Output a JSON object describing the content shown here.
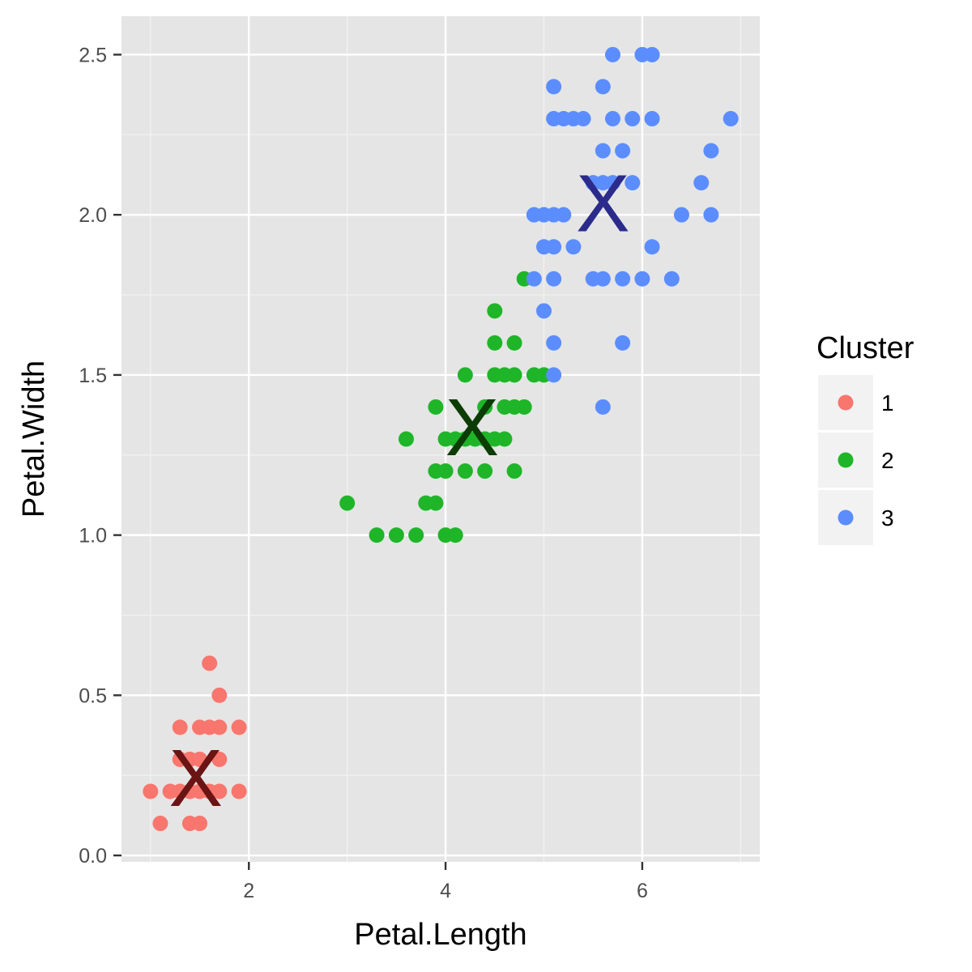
{
  "chart_data": {
    "type": "scatter",
    "xlabel": "Petal.Length",
    "ylabel": "Petal.Width",
    "xlim": [
      0.705,
      7.195
    ],
    "ylim": [
      -0.02,
      2.62
    ],
    "x_ticks": [
      2,
      4,
      6
    ],
    "x_tick_labels": [
      "2",
      "4",
      "6"
    ],
    "y_ticks": [
      0.0,
      0.5,
      1.0,
      1.5,
      2.0,
      2.5
    ],
    "y_tick_labels": [
      "0.0",
      "0.5",
      "1.0",
      "1.5",
      "2.0",
      "2.5"
    ],
    "grid": true,
    "panel_background": "#e5e5e5",
    "legend": {
      "title": "Cluster",
      "placement": "right",
      "entries": [
        {
          "label": "1",
          "color": "#f8766d"
        },
        {
          "label": "2",
          "color": "#1fb529"
        },
        {
          "label": "3",
          "color": "#5c8dff"
        }
      ]
    },
    "centroids": [
      {
        "cluster": "1",
        "label": "X",
        "x": 1.46,
        "y": 0.246,
        "color": "#6b1414"
      },
      {
        "cluster": "2",
        "label": "X",
        "x": 4.27,
        "y": 1.34,
        "color": "#0b3d05"
      },
      {
        "cluster": "3",
        "label": "X",
        "x": 5.6,
        "y": 2.04,
        "color": "#2b2b8c"
      }
    ],
    "series": [
      {
        "name": "1",
        "color": "#f8766d",
        "points": [
          [
            1.0,
            0.2
          ],
          [
            1.2,
            0.2
          ],
          [
            1.3,
            0.2
          ],
          [
            1.4,
            0.2
          ],
          [
            1.5,
            0.2
          ],
          [
            1.6,
            0.2
          ],
          [
            1.7,
            0.2
          ],
          [
            1.9,
            0.2
          ],
          [
            1.1,
            0.1
          ],
          [
            1.4,
            0.1
          ],
          [
            1.5,
            0.1
          ],
          [
            1.3,
            0.3
          ],
          [
            1.4,
            0.3
          ],
          [
            1.5,
            0.3
          ],
          [
            1.7,
            0.3
          ],
          [
            1.3,
            0.4
          ],
          [
            1.5,
            0.4
          ],
          [
            1.6,
            0.4
          ],
          [
            1.7,
            0.4
          ],
          [
            1.9,
            0.4
          ],
          [
            1.7,
            0.5
          ],
          [
            1.6,
            0.6
          ]
        ]
      },
      {
        "name": "2",
        "color": "#1fb529",
        "points": [
          [
            3.3,
            1.0
          ],
          [
            3.5,
            1.0
          ],
          [
            3.7,
            1.0
          ],
          [
            4.0,
            1.0
          ],
          [
            4.1,
            1.0
          ],
          [
            3.0,
            1.1
          ],
          [
            3.8,
            1.1
          ],
          [
            3.9,
            1.1
          ],
          [
            3.9,
            1.2
          ],
          [
            4.0,
            1.2
          ],
          [
            4.2,
            1.2
          ],
          [
            4.4,
            1.2
          ],
          [
            4.7,
            1.2
          ],
          [
            3.6,
            1.3
          ],
          [
            4.0,
            1.3
          ],
          [
            4.1,
            1.3
          ],
          [
            4.2,
            1.3
          ],
          [
            4.3,
            1.3
          ],
          [
            4.4,
            1.3
          ],
          [
            4.5,
            1.3
          ],
          [
            4.6,
            1.3
          ],
          [
            3.9,
            1.4
          ],
          [
            4.4,
            1.4
          ],
          [
            4.6,
            1.4
          ],
          [
            4.7,
            1.4
          ],
          [
            4.8,
            1.4
          ],
          [
            4.2,
            1.5
          ],
          [
            4.5,
            1.5
          ],
          [
            4.6,
            1.5
          ],
          [
            4.7,
            1.5
          ],
          [
            4.9,
            1.5
          ],
          [
            5.0,
            1.5
          ],
          [
            4.5,
            1.6
          ],
          [
            4.7,
            1.6
          ],
          [
            4.5,
            1.7
          ],
          [
            4.8,
            1.8
          ]
        ]
      },
      {
        "name": "3",
        "color": "#5c8dff",
        "points": [
          [
            5.1,
            1.5
          ],
          [
            5.6,
            1.4
          ],
          [
            5.8,
            1.6
          ],
          [
            5.1,
            1.6
          ],
          [
            5.0,
            1.7
          ],
          [
            4.9,
            1.8
          ],
          [
            5.1,
            1.8
          ],
          [
            5.5,
            1.8
          ],
          [
            5.6,
            1.8
          ],
          [
            5.8,
            1.8
          ],
          [
            6.0,
            1.8
          ],
          [
            6.3,
            1.8
          ],
          [
            5.0,
            1.9
          ],
          [
            5.1,
            1.9
          ],
          [
            5.3,
            1.9
          ],
          [
            6.1,
            1.9
          ],
          [
            4.9,
            2.0
          ],
          [
            5.0,
            2.0
          ],
          [
            5.1,
            2.0
          ],
          [
            5.2,
            2.0
          ],
          [
            6.4,
            2.0
          ],
          [
            6.7,
            2.0
          ],
          [
            5.5,
            2.1
          ],
          [
            5.6,
            2.1
          ],
          [
            5.7,
            2.1
          ],
          [
            5.9,
            2.1
          ],
          [
            6.6,
            2.1
          ],
          [
            5.6,
            2.2
          ],
          [
            5.8,
            2.2
          ],
          [
            6.7,
            2.2
          ],
          [
            5.1,
            2.3
          ],
          [
            5.2,
            2.3
          ],
          [
            5.3,
            2.3
          ],
          [
            5.4,
            2.3
          ],
          [
            5.7,
            2.3
          ],
          [
            5.9,
            2.3
          ],
          [
            6.1,
            2.3
          ],
          [
            6.9,
            2.3
          ],
          [
            5.1,
            2.4
          ],
          [
            5.6,
            2.4
          ],
          [
            5.7,
            2.5
          ],
          [
            6.0,
            2.5
          ],
          [
            6.1,
            2.5
          ]
        ]
      }
    ]
  }
}
